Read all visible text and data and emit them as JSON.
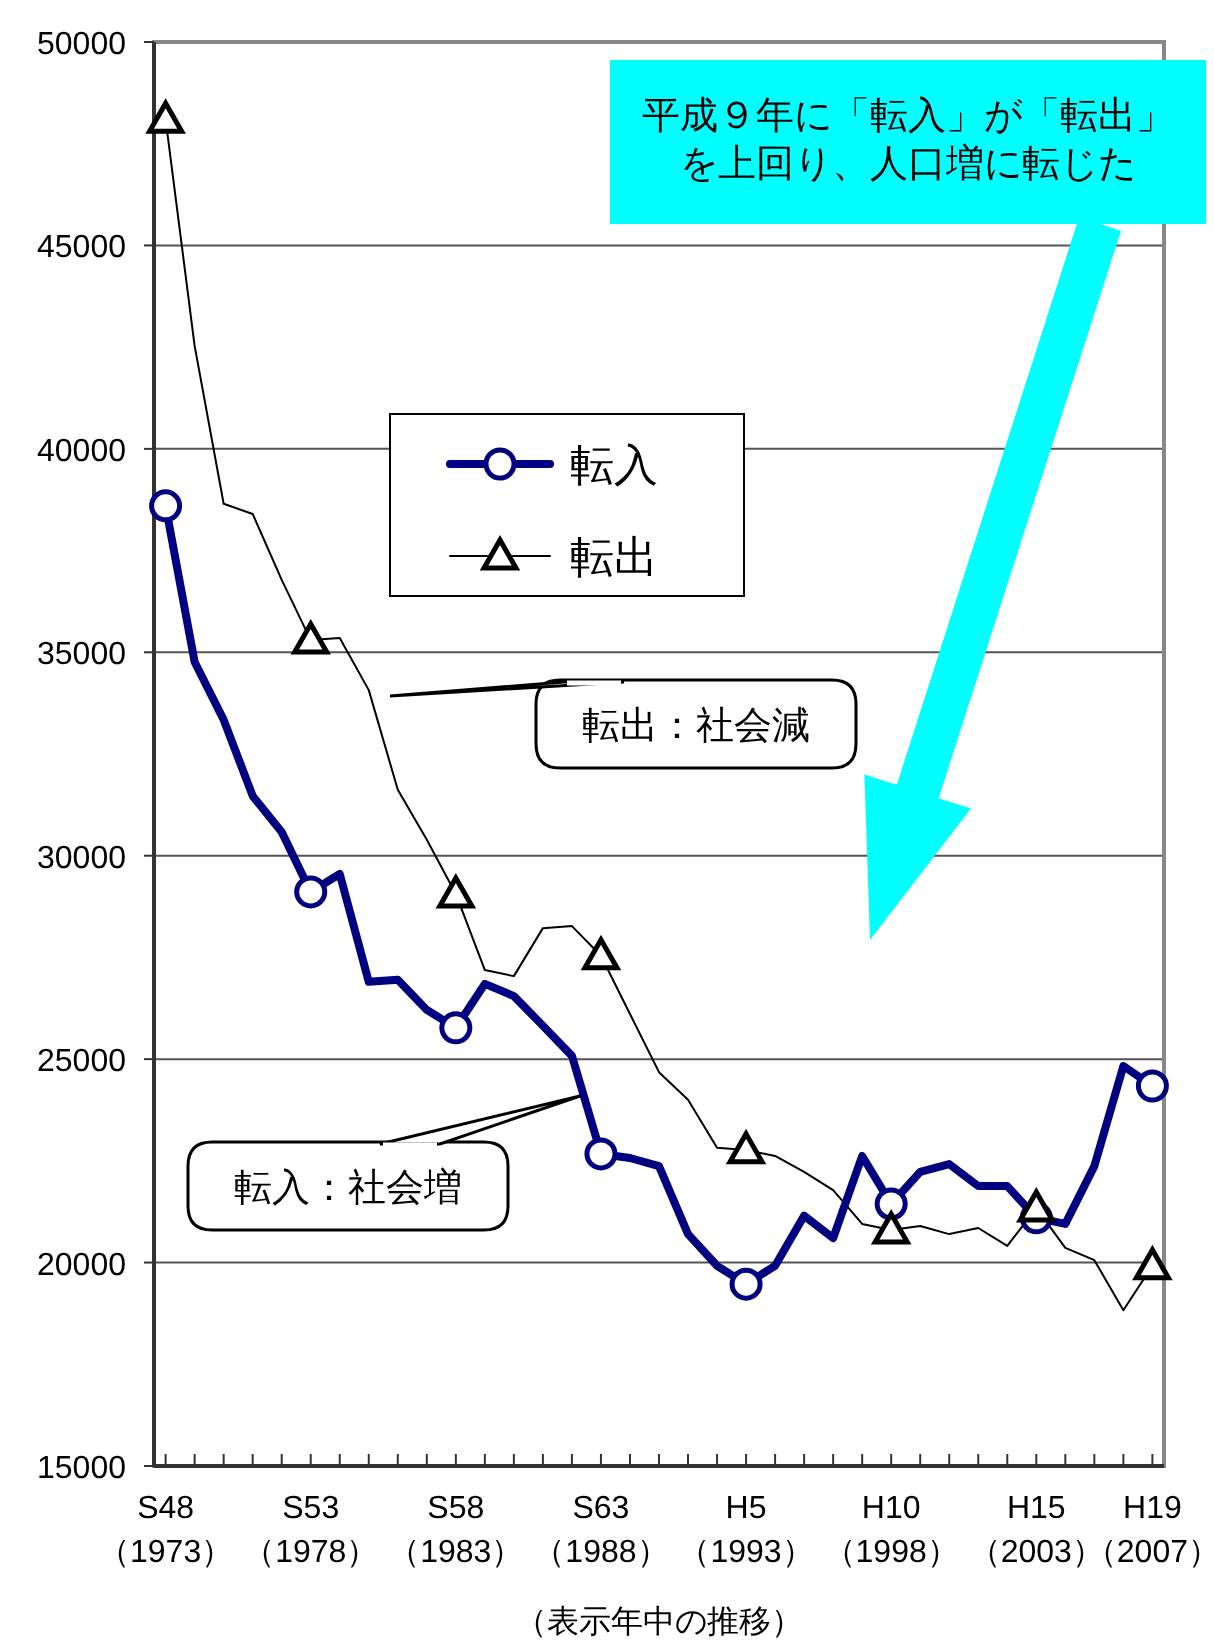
{
  "chart_data": {
    "type": "line",
    "categories": [
      "S48\n（1973）",
      null,
      null,
      null,
      null,
      "S53\n（1978）",
      null,
      null,
      null,
      null,
      "S58\n（1983）",
      null,
      null,
      null,
      null,
      "S63\n（1988）",
      null,
      null,
      null,
      null,
      "H5\n（1993）",
      null,
      null,
      null,
      null,
      "H10\n（1998）",
      null,
      null,
      null,
      null,
      "H15\n（2003）",
      null,
      null,
      null,
      "H19\n（2007）"
    ],
    "series": [
      {
        "name": "転入",
        "color": "#000080",
        "marker": "none",
        "values": [
          38600,
          34760,
          33340,
          31470,
          30580,
          29110,
          29550,
          26900,
          26950,
          26210,
          25770,
          26850,
          26550,
          25820,
          25080,
          22670,
          22570,
          22370,
          20700,
          19920,
          19470,
          19920,
          21150,
          20600,
          22620,
          21440,
          22230,
          22420,
          21880,
          21880,
          21100,
          20950,
          22370,
          24830,
          24340
        ]
      },
      {
        "type": "scatter",
        "color": "#000080",
        "marker": "circle",
        "values": [
          38600,
          null,
          null,
          null,
          null,
          29110,
          null,
          null,
          null,
          null,
          25770,
          null,
          null,
          null,
          null,
          22670,
          null,
          null,
          null,
          null,
          19470,
          null,
          null,
          null,
          null,
          21440,
          null,
          null,
          null,
          null,
          21100,
          null,
          null,
          null,
          24340
        ]
      },
      {
        "name": "転出",
        "color": "#000000",
        "marker": "none",
        "values": [
          48100,
          42530,
          38650,
          38400,
          36780,
          35300,
          35350,
          34070,
          31620,
          30390,
          29060,
          27190,
          27040,
          28220,
          28270,
          27540,
          26110,
          24680,
          24000,
          22820,
          22770,
          22620,
          22230,
          21780,
          20950,
          20800,
          20900,
          20700,
          20850,
          20410,
          21340,
          20360,
          20060,
          18830,
          19920
        ]
      },
      {
        "type": "scatter",
        "color": "#000000",
        "marker": "triangle",
        "values": [
          48100,
          null,
          null,
          null,
          null,
          35300,
          null,
          null,
          null,
          null,
          29060,
          null,
          null,
          null,
          null,
          27540,
          null,
          null,
          null,
          null,
          22770,
          null,
          null,
          null,
          null,
          20800,
          null,
          null,
          null,
          null,
          21340,
          null,
          null,
          null,
          19920
        ]
      }
    ],
    "ylim": [
      15000,
      50000
    ],
    "yticks": [
      15000,
      20000,
      25000,
      30000,
      35000,
      40000,
      45000,
      50000
    ],
    "xlabel": "（表示年中の推移）",
    "grid": "y",
    "legend": "top",
    "annotations": [
      "平成９年に「転入」が「転出」を上回り、人口増に転じた",
      "転出：社会減",
      "転入：社会増"
    ]
  }
}
